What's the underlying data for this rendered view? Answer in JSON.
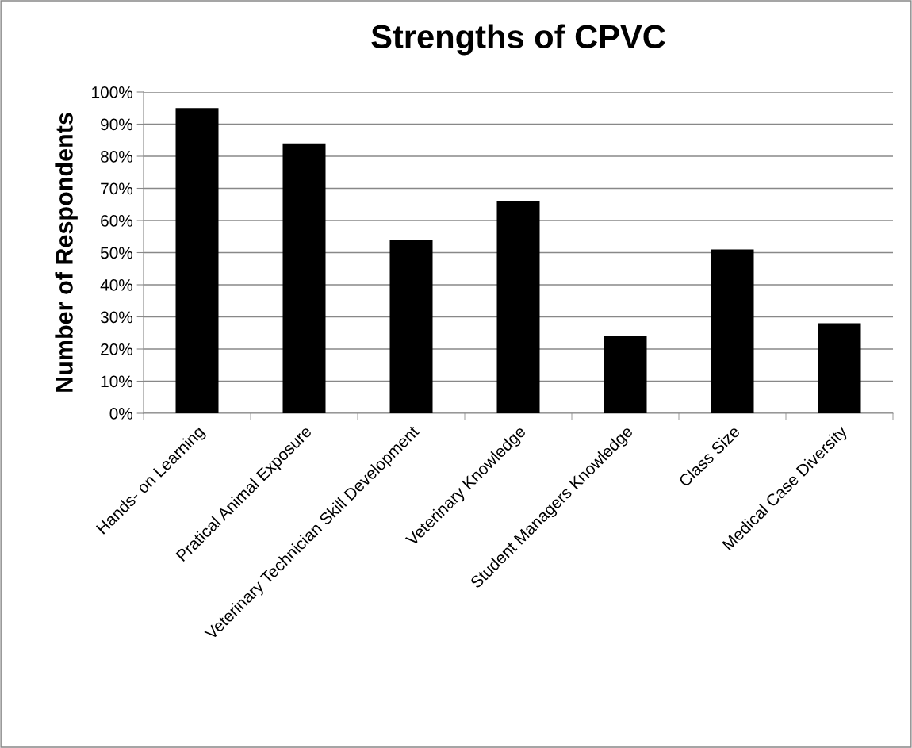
{
  "chart_data": {
    "type": "bar",
    "title": "Strengths of CPVC",
    "ylabel": "Number of Respondents",
    "categories": [
      "Hands- on Learning",
      "Pratical Animal Exposure",
      "Veterinary Technician Skill Development",
      "Veterinary Knowledge",
      "Student Managers Knowledge",
      "Class Size",
      "Medical Case Diversity"
    ],
    "values": [
      95,
      84,
      54,
      66,
      24,
      51,
      28
    ],
    "color": "#000000",
    "ylim": [
      0,
      100
    ],
    "yticks": [
      {
        "value": 0,
        "label": "0%"
      },
      {
        "value": 10,
        "label": "10%"
      },
      {
        "value": 20,
        "label": "20%"
      },
      {
        "value": 30,
        "label": "30%"
      },
      {
        "value": 40,
        "label": "40%"
      },
      {
        "value": 50,
        "label": "50%"
      },
      {
        "value": 60,
        "label": "60%"
      },
      {
        "value": 70,
        "label": "70%"
      },
      {
        "value": 80,
        "label": "80%"
      },
      {
        "value": 90,
        "label": "90%"
      },
      {
        "value": 100,
        "label": "100%"
      }
    ],
    "grid": "y",
    "legend": false
  }
}
